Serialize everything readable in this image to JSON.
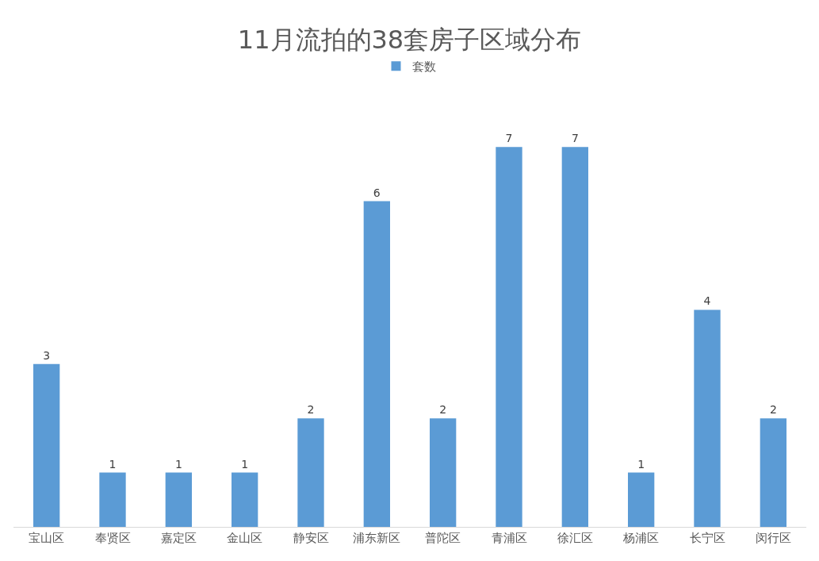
{
  "chart_data": {
    "type": "bar",
    "title": "11月流拍的38套房子区域分布",
    "categories": [
      "宝山区",
      "奉贤区",
      "嘉定区",
      "金山区",
      "静安区",
      "浦东新区",
      "普陀区",
      "青浦区",
      "徐汇区",
      "杨浦区",
      "长宁区",
      "闵行区"
    ],
    "series": [
      {
        "name": "套数",
        "color": "#5b9bd5",
        "values": [
          3,
          1,
          1,
          1,
          2,
          6,
          2,
          7,
          7,
          1,
          4,
          2
        ]
      }
    ],
    "data_labels": true,
    "legend": "top",
    "tick_labels": "x"
  }
}
